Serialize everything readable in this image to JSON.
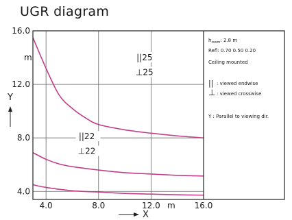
{
  "title": "UGR diagram",
  "chart_data": {
    "type": "line",
    "xlim": [
      3.0,
      16.0
    ],
    "ylim": [
      3.4,
      16.0
    ],
    "x_ticks": [
      "4.0",
      "8.0",
      "12.0",
      "16.0"
    ],
    "x_tick_values": [
      4,
      8,
      12,
      16
    ],
    "x_unit": "m",
    "xlabel": "X",
    "y_ticks": [
      "4.0",
      "8.0",
      "12.0",
      "16.0"
    ],
    "y_tick_values": [
      4,
      8,
      12,
      16
    ],
    "y_unit": "m",
    "ylabel": "Y",
    "grid": true,
    "series_color": "#c0408a",
    "series": [
      {
        "x": [
          3.0,
          4.0,
          5.0,
          6.0,
          7.0,
          8.0,
          10.0,
          12.0,
          14.0,
          16.0
        ],
        "y": [
          15.5,
          13.2,
          11.2,
          10.2,
          9.5,
          9.0,
          8.6,
          8.35,
          8.15,
          8.0
        ]
      },
      {
        "x": [
          3.0,
          4.0,
          5.0,
          6.0,
          8.0,
          10.0,
          12.0,
          14.0,
          16.0
        ],
        "y": [
          6.9,
          6.4,
          6.05,
          5.85,
          5.6,
          5.4,
          5.3,
          5.2,
          5.15
        ]
      },
      {
        "x": [
          3.0,
          4.0,
          6.0,
          8.0,
          10.0,
          12.0,
          14.0,
          16.0
        ],
        "y": [
          4.5,
          4.3,
          4.05,
          3.95,
          3.85,
          3.8,
          3.75,
          3.72
        ]
      }
    ],
    "annotations": [
      {
        "symbol": "||",
        "text": "25",
        "x": 11.5,
        "y": 13.8
      },
      {
        "symbol": "⊥",
        "text": "25",
        "x": 11.5,
        "y": 12.7
      },
      {
        "symbol": "||",
        "text": "22",
        "x": 7.1,
        "y": 7.9
      },
      {
        "symbol": "⊥",
        "text": "22",
        "x": 7.1,
        "y": 6.8
      }
    ],
    "legend": {
      "h_room_label": "h",
      "h_room_sub": "room",
      "h_room_value": ": 2.8 m",
      "refl": "Refl: 0.70 0.50 0.20",
      "mounting": "Ceiling mounted",
      "endwise": ": viewed endwise",
      "crosswise": ": viewed crosswise",
      "parallel": "Y  : Parallel to viewing dir.",
      "endwise_symbol": "||",
      "crosswise_symbol": "⊥"
    }
  }
}
